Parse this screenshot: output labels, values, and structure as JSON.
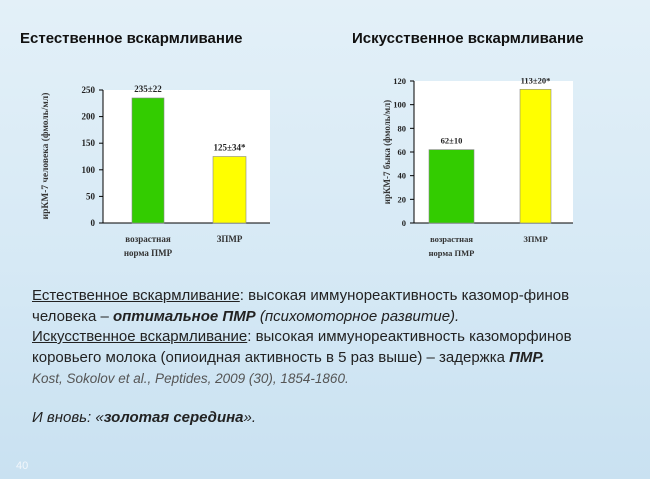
{
  "headings": {
    "left": "Естественное вскармливание",
    "right": "Искусственное вскармливание"
  },
  "chart_data": [
    {
      "type": "bar",
      "ylabel": "ирКМ-7 человека (фмоль/мл)",
      "ylim": [
        0,
        250
      ],
      "yticks": [
        0,
        50,
        100,
        150,
        200,
        250
      ],
      "categories": [
        "возрастная норма ПМР",
        "ЗПМР"
      ],
      "category_lines": [
        [
          "возрастная",
          "норма ПМР"
        ],
        [
          "ЗПМР"
        ]
      ],
      "values": [
        235,
        125
      ],
      "value_labels": [
        "235±22",
        "125±34*"
      ],
      "colors": [
        "#33cc00",
        "#ffff00"
      ],
      "grid": false
    },
    {
      "type": "bar",
      "ylabel": "ирКМ-7 быка (фмоль/мл)",
      "ylim": [
        0,
        120
      ],
      "yticks": [
        0,
        20,
        40,
        60,
        80,
        100,
        120
      ],
      "categories": [
        "возрастная норма ПМР",
        "ЗПМР"
      ],
      "category_lines": [
        [
          "возрастная",
          "норма ПМР"
        ],
        [
          "ЗПМР"
        ]
      ],
      "values": [
        62,
        113
      ],
      "value_labels": [
        "62±10",
        "113±20*"
      ],
      "colors": [
        "#33cc00",
        "#ffff00"
      ],
      "grid": false
    }
  ],
  "text": {
    "p1_u": "Естественное вскармливание",
    "p1_a": ": высокая иммунореактивность казомор-финов человека – ",
    "p1_b": "оптимальное ПМР",
    "p1_c": " (психомоторное развитие).",
    "p2_u": "Искусственное вскармливание",
    "p2_a": ": высокая иммунореактивность казоморфинов коровьего молока (опиоидная активность в 5 раз выше) – задержка ",
    "p2_b": "ПМР.",
    "ref": "Kost, Sokolov et al., Peptides, 2009 (30), 1854-1860.",
    "c_a": "И вновь: «",
    "c_b": "золотая середина",
    "c_c": "»."
  },
  "page_number": "40"
}
